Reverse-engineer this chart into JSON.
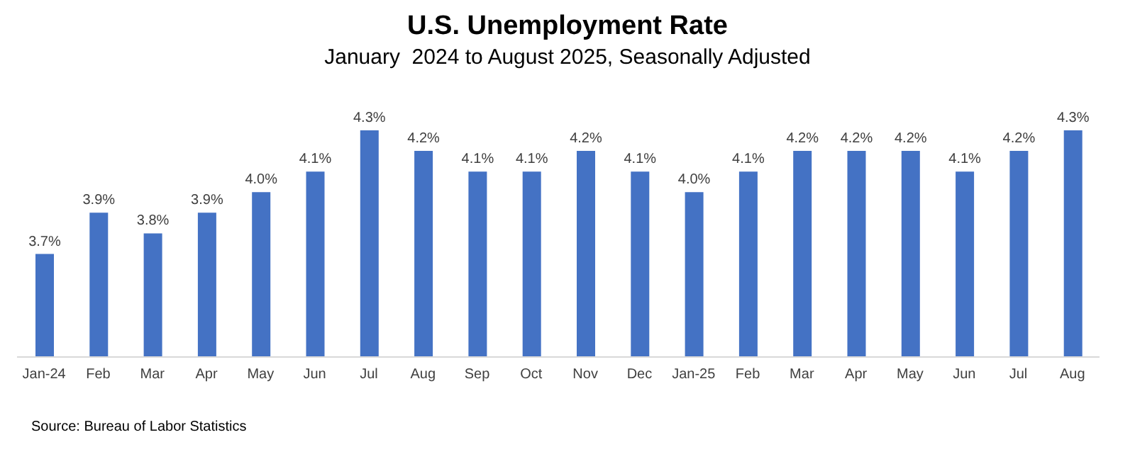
{
  "chart_data": {
    "type": "bar",
    "title": "U.S. Unemployment Rate",
    "subtitle": "January  2024 to August 2025, Seasonally Adjusted",
    "categories": [
      "Jan-24",
      "Feb",
      "Mar",
      "Apr",
      "May",
      "Jun",
      "Jul",
      "Aug",
      "Sep",
      "Oct",
      "Nov",
      "Dec",
      "Jan-25",
      "Feb",
      "Mar",
      "Apr",
      "May",
      "Jun",
      "Jul",
      "Aug"
    ],
    "values": [
      3.7,
      3.9,
      3.8,
      3.9,
      4.0,
      4.1,
      4.3,
      4.2,
      4.1,
      4.1,
      4.2,
      4.1,
      4.0,
      4.1,
      4.2,
      4.2,
      4.2,
      4.1,
      4.2,
      4.3
    ],
    "value_labels": [
      "3.7%",
      "3.9%",
      "3.8%",
      "3.9%",
      "4.0%",
      "4.1%",
      "4.3%",
      "4.2%",
      "4.1%",
      "4.1%",
      "4.2%",
      "4.1%",
      "4.0%",
      "4.1%",
      "4.2%",
      "4.2%",
      "4.2%",
      "4.1%",
      "4.2%",
      "4.3%"
    ],
    "color": "#4472c4",
    "ylim": [
      3.2,
      4.3
    ],
    "grid": false,
    "legend": false,
    "annotations": [
      "Source: Bureau of Labor Statistics"
    ]
  }
}
